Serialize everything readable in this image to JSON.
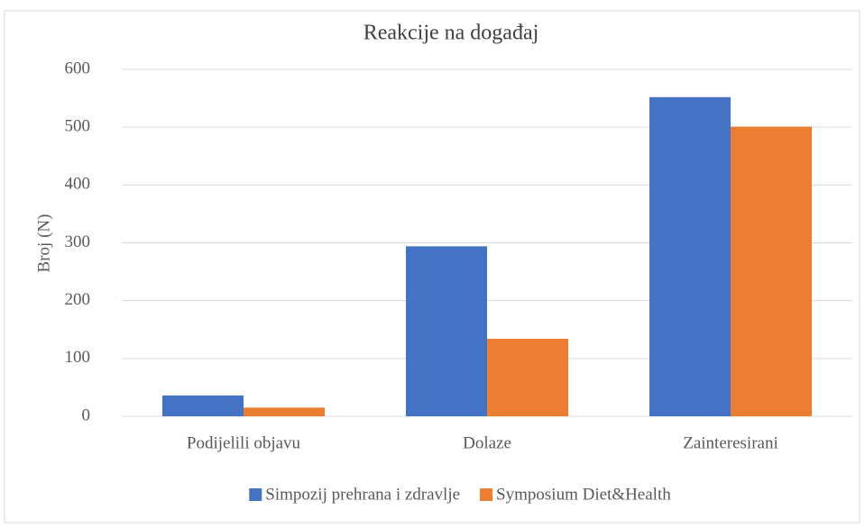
{
  "chart_data": {
    "type": "bar",
    "title": "Reakcije na događaj",
    "y_label": "Broj (N)",
    "categories": [
      "Podijelili objavu",
      "Dolaze",
      "Zainteresirani"
    ],
    "series": [
      {
        "name": "Simpozij prehrana i zdravlje",
        "color": "#4472c4",
        "values": [
          36,
          294,
          552
        ]
      },
      {
        "name": "Symposium Diet&Health",
        "color": "#ed7d31",
        "values": [
          15,
          134,
          501
        ]
      }
    ],
    "ylim": [
      0,
      600
    ],
    "yticks": [
      0,
      100,
      200,
      300,
      400,
      500,
      600
    ],
    "grid": true,
    "legend": "bottom"
  }
}
